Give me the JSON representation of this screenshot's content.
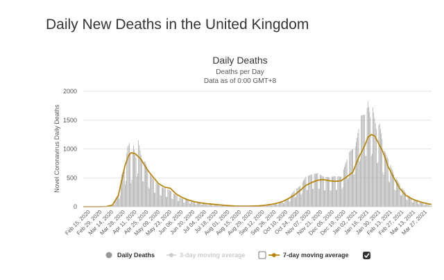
{
  "page": {
    "title": "Daily New Deaths in the United Kingdom"
  },
  "chart_data": {
    "type": "bar",
    "title": "Daily Deaths",
    "subtitle": "Deaths per Day",
    "subtitle2": "Data as of 0:00 GMT+8",
    "ylabel": "Novel Coronavirus Daily Deaths",
    "xlabel": "",
    "ylim": [
      0,
      2000
    ],
    "yticks": [
      0,
      500,
      1000,
      1500,
      2000
    ],
    "grid": true,
    "x_start": "2020-02-15",
    "x_end": "2021-04-06",
    "xtick_labels": [
      "Feb 15, 2020",
      "Feb 29, 2020",
      "Mar 14, 2020",
      "Mar 28, 2020",
      "Apr 11, 2020",
      "Apr 25, 2020",
      "May 09, 2020",
      "May 23, 2020",
      "Jun 06, 2020",
      "Jun 20, 2020",
      "Jul 04, 2020",
      "Jul 18, 2020",
      "Aug 01, 2020",
      "Aug 15, 2020",
      "Aug 29, 2020",
      "Sep 12, 2020",
      "Sep 26, 2020",
      "Oct 10, 2020",
      "Oct 24, 2020",
      "Nov 07, 2020",
      "Nov 21, 2020",
      "Dec 05, 2020",
      "Dec 19, 2020",
      "Jan 02, 2021",
      "Jan 16, 2021",
      "Jan 30, 2021",
      "Feb 13, 2021",
      "Feb 27, 2021",
      "Mar 13, 2021",
      "Mar 27, 2021"
    ],
    "series": [
      {
        "name": "Daily Deaths",
        "type": "bar",
        "color": "#a8a8a8",
        "points": [
          [
            "2020-02-15",
            0
          ],
          [
            "2020-03-01",
            0
          ],
          [
            "2020-03-08",
            1
          ],
          [
            "2020-03-15",
            10
          ],
          [
            "2020-03-22",
            40
          ],
          [
            "2020-03-29",
            250
          ],
          [
            "2020-04-01",
            560
          ],
          [
            "2020-04-05",
            700
          ],
          [
            "2020-04-08",
            1040
          ],
          [
            "2020-04-10",
            1100
          ],
          [
            "2020-04-12",
            740
          ],
          [
            "2020-04-15",
            1060
          ],
          [
            "2020-04-18",
            850
          ],
          [
            "2020-04-21",
            1150
          ],
          [
            "2020-04-25",
            810
          ],
          [
            "2020-04-29",
            780
          ],
          [
            "2020-05-04",
            570
          ],
          [
            "2020-05-10",
            450
          ],
          [
            "2020-05-15",
            380
          ],
          [
            "2020-05-20",
            330
          ],
          [
            "2020-05-27",
            300
          ],
          [
            "2020-06-03",
            220
          ],
          [
            "2020-06-10",
            150
          ],
          [
            "2020-06-17",
            120
          ],
          [
            "2020-06-24",
            90
          ],
          [
            "2020-07-01",
            70
          ],
          [
            "2020-07-08",
            60
          ],
          [
            "2020-07-15",
            40
          ],
          [
            "2020-07-22",
            30
          ],
          [
            "2020-08-01",
            20
          ],
          [
            "2020-08-15",
            12
          ],
          [
            "2020-09-01",
            10
          ],
          [
            "2020-09-12",
            15
          ],
          [
            "2020-09-19",
            25
          ],
          [
            "2020-09-26",
            40
          ],
          [
            "2020-10-03",
            65
          ],
          [
            "2020-10-10",
            90
          ],
          [
            "2020-10-17",
            140
          ],
          [
            "2020-10-24",
            280
          ],
          [
            "2020-10-31",
            360
          ],
          [
            "2020-11-07",
            520
          ],
          [
            "2020-11-14",
            560
          ],
          [
            "2020-11-21",
            580
          ],
          [
            "2020-11-28",
            520
          ],
          [
            "2020-12-05",
            510
          ],
          [
            "2020-12-12",
            530
          ],
          [
            "2020-12-19",
            520
          ],
          [
            "2020-12-29",
            950
          ],
          [
            "2021-01-05",
            1040
          ],
          [
            "2021-01-12",
            1580
          ],
          [
            "2021-01-18",
            1600
          ],
          [
            "2021-01-20",
            1820
          ],
          [
            "2021-01-23",
            1550
          ],
          [
            "2021-01-26",
            1720
          ],
          [
            "2021-01-30",
            1350
          ],
          [
            "2021-02-03",
            1440
          ],
          [
            "2021-02-08",
            1000
          ],
          [
            "2021-02-14",
            800
          ],
          [
            "2021-02-20",
            560
          ],
          [
            "2021-02-27",
            390
          ],
          [
            "2021-03-06",
            240
          ],
          [
            "2021-03-13",
            150
          ],
          [
            "2021-03-20",
            90
          ],
          [
            "2021-03-27",
            60
          ],
          [
            "2021-04-06",
            20
          ]
        ]
      },
      {
        "name": "3-day moving average",
        "type": "line",
        "color": "#cccccc",
        "visible": false
      },
      {
        "name": "7-day moving average",
        "type": "line",
        "color": "#b8860b",
        "visible": true,
        "points": [
          [
            "2020-02-15",
            0
          ],
          [
            "2020-03-05",
            0
          ],
          [
            "2020-03-14",
            5
          ],
          [
            "2020-03-21",
            30
          ],
          [
            "2020-03-28",
            200
          ],
          [
            "2020-04-01",
            460
          ],
          [
            "2020-04-05",
            720
          ],
          [
            "2020-04-09",
            880
          ],
          [
            "2020-04-12",
            935
          ],
          [
            "2020-04-17",
            920
          ],
          [
            "2020-04-24",
            820
          ],
          [
            "2020-05-01",
            650
          ],
          [
            "2020-05-08",
            520
          ],
          [
            "2020-05-15",
            400
          ],
          [
            "2020-05-22",
            340
          ],
          [
            "2020-05-29",
            320
          ],
          [
            "2020-06-05",
            220
          ],
          [
            "2020-06-12",
            160
          ],
          [
            "2020-06-19",
            120
          ],
          [
            "2020-06-26",
            90
          ],
          [
            "2020-07-03",
            70
          ],
          [
            "2020-07-10",
            55
          ],
          [
            "2020-07-17",
            45
          ],
          [
            "2020-08-01",
            25
          ],
          [
            "2020-08-15",
            12
          ],
          [
            "2020-09-01",
            10
          ],
          [
            "2020-09-12",
            15
          ],
          [
            "2020-09-19",
            25
          ],
          [
            "2020-09-26",
            40
          ],
          [
            "2020-10-03",
            60
          ],
          [
            "2020-10-10",
            90
          ],
          [
            "2020-10-17",
            140
          ],
          [
            "2020-10-24",
            200
          ],
          [
            "2020-10-31",
            280
          ],
          [
            "2020-11-07",
            370
          ],
          [
            "2020-11-14",
            420
          ],
          [
            "2020-11-21",
            460
          ],
          [
            "2020-11-28",
            470
          ],
          [
            "2020-12-05",
            450
          ],
          [
            "2020-12-12",
            440
          ],
          [
            "2020-12-19",
            450
          ],
          [
            "2020-12-26",
            520
          ],
          [
            "2021-01-02",
            600
          ],
          [
            "2021-01-09",
            850
          ],
          [
            "2021-01-16",
            1050
          ],
          [
            "2021-01-20",
            1200
          ],
          [
            "2021-01-24",
            1250
          ],
          [
            "2021-01-28",
            1230
          ],
          [
            "2021-02-01",
            1120
          ],
          [
            "2021-02-07",
            950
          ],
          [
            "2021-02-13",
            700
          ],
          [
            "2021-02-20",
            500
          ],
          [
            "2021-02-27",
            320
          ],
          [
            "2021-03-06",
            200
          ],
          [
            "2021-03-13",
            140
          ],
          [
            "2021-03-20",
            100
          ],
          [
            "2021-03-27",
            70
          ],
          [
            "2021-04-06",
            40
          ]
        ]
      }
    ]
  }
}
